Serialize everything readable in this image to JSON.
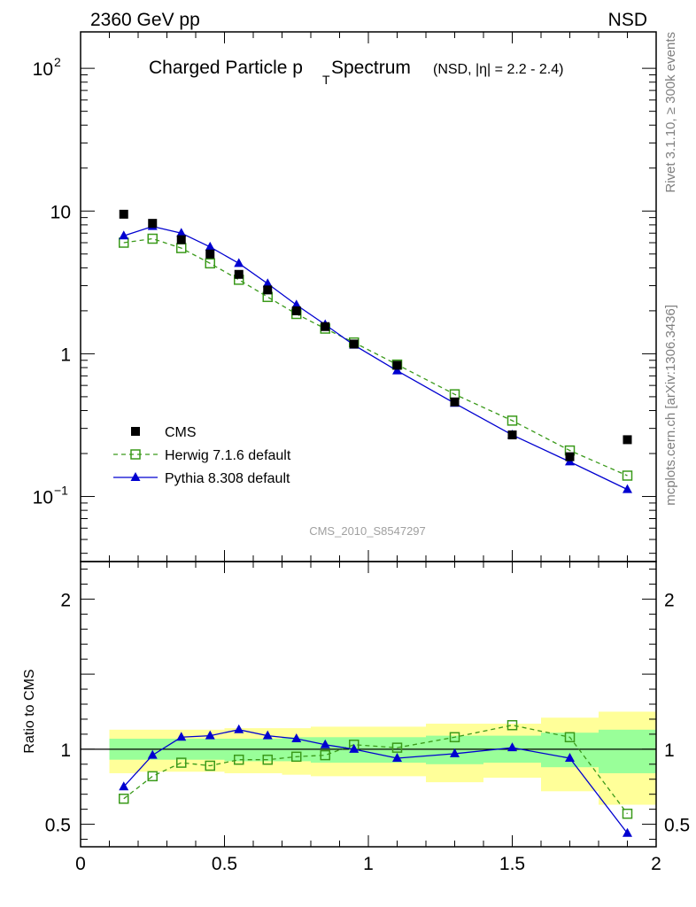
{
  "header": {
    "left": "2360 GeV pp",
    "right": "NSD"
  },
  "side_labels": {
    "rivet": "Rivet 3.1.10, ≥ 300k events",
    "mcplots": "mcplots.cern.ch [arXiv:1306.3436]"
  },
  "watermark": "CMS_2010_S8547297",
  "colors": {
    "cms": "#000000",
    "herwig": "#3a9a1a",
    "pythia": "#0000d0",
    "band_outer": "#ffff99",
    "band_inner": "#99ff99"
  },
  "chart_data": [
    {
      "type": "scatter",
      "panel": "main",
      "title": "Charged Particle p",
      "title_sub": "T",
      "title_rest": " Spectrum",
      "title_note": "(NSD, |η| = 2.2 - 2.4)",
      "yscale": "log",
      "ylim": [
        0.035,
        180
      ],
      "xlim": [
        0,
        2
      ],
      "yticks": [
        {
          "v": 100,
          "label": "10",
          "exp": "2"
        },
        {
          "v": 10,
          "label": "10"
        },
        {
          "v": 1,
          "label": "1"
        },
        {
          "v": 0.1,
          "label": "10",
          "exp": "−1"
        }
      ],
      "legend": {
        "position": "bottom-left",
        "entries": [
          "CMS",
          "Herwig 7.1.6 default",
          "Pythia 8.308 default"
        ]
      },
      "series": [
        {
          "name": "CMS",
          "marker": "square-filled",
          "x": [
            0.15,
            0.25,
            0.35,
            0.45,
            0.55,
            0.65,
            0.75,
            0.85,
            0.95,
            1.1,
            1.3,
            1.5,
            1.7,
            1.9
          ],
          "y": [
            9.5,
            8.2,
            6.3,
            5.0,
            3.6,
            2.8,
            2.0,
            1.55,
            1.17,
            0.83,
            0.46,
            0.27,
            0.19,
            0.25
          ]
        },
        {
          "name": "Herwig 7.1.6 default",
          "marker": "square-open",
          "line": "dashed",
          "x": [
            0.15,
            0.25,
            0.35,
            0.45,
            0.55,
            0.65,
            0.75,
            0.85,
            0.95,
            1.1,
            1.3,
            1.5,
            1.7,
            1.9
          ],
          "y": [
            6.0,
            6.4,
            5.5,
            4.3,
            3.3,
            2.5,
            1.9,
            1.5,
            1.2,
            0.84,
            0.52,
            0.34,
            0.21,
            0.14
          ]
        },
        {
          "name": "Pythia 8.308 default",
          "marker": "triangle-filled",
          "line": "solid",
          "x": [
            0.15,
            0.25,
            0.35,
            0.45,
            0.55,
            0.65,
            0.75,
            0.85,
            0.95,
            1.1,
            1.3,
            1.5,
            1.7,
            1.9
          ],
          "y": [
            6.7,
            7.8,
            7.0,
            5.6,
            4.3,
            3.1,
            2.2,
            1.6,
            1.15,
            0.76,
            0.45,
            0.27,
            0.175,
            0.112
          ]
        }
      ]
    },
    {
      "type": "line",
      "panel": "ratio",
      "ylabel": "Ratio to CMS",
      "xlim": [
        0,
        2
      ],
      "ylim": [
        0.35,
        2.25
      ],
      "yticks": [
        {
          "v": 2,
          "label": "2"
        },
        {
          "v": 1,
          "label": "1"
        },
        {
          "v": 0.5,
          "label": "0.5"
        }
      ],
      "xticks": [
        {
          "v": 0,
          "label": "0"
        },
        {
          "v": 0.5,
          "label": "0.5"
        },
        {
          "v": 1,
          "label": "1"
        },
        {
          "v": 1.5,
          "label": "1.5"
        },
        {
          "v": 2,
          "label": "2"
        }
      ],
      "reference_line": 1,
      "bands": [
        {
          "x0": 0.1,
          "x1": 0.2,
          "outer": [
            0.84,
            1.13
          ],
          "inner": [
            0.93,
            1.07
          ]
        },
        {
          "x0": 0.2,
          "x1": 0.3,
          "outer": [
            0.85,
            1.13
          ],
          "inner": [
            0.93,
            1.07
          ]
        },
        {
          "x0": 0.3,
          "x1": 0.4,
          "outer": [
            0.85,
            1.13
          ],
          "inner": [
            0.93,
            1.07
          ]
        },
        {
          "x0": 0.4,
          "x1": 0.5,
          "outer": [
            0.85,
            1.13
          ],
          "inner": [
            0.93,
            1.07
          ]
        },
        {
          "x0": 0.5,
          "x1": 0.6,
          "outer": [
            0.84,
            1.14
          ],
          "inner": [
            0.92,
            1.07
          ]
        },
        {
          "x0": 0.6,
          "x1": 0.7,
          "outer": [
            0.84,
            1.14
          ],
          "inner": [
            0.92,
            1.07
          ]
        },
        {
          "x0": 0.7,
          "x1": 0.8,
          "outer": [
            0.83,
            1.14
          ],
          "inner": [
            0.92,
            1.08
          ]
        },
        {
          "x0": 0.8,
          "x1": 0.9,
          "outer": [
            0.82,
            1.15
          ],
          "inner": [
            0.91,
            1.08
          ]
        },
        {
          "x0": 0.9,
          "x1": 1.0,
          "outer": [
            0.82,
            1.15
          ],
          "inner": [
            0.91,
            1.08
          ]
        },
        {
          "x0": 1.0,
          "x1": 1.2,
          "outer": [
            0.82,
            1.15
          ],
          "inner": [
            0.91,
            1.08
          ]
        },
        {
          "x0": 1.2,
          "x1": 1.4,
          "outer": [
            0.78,
            1.17
          ],
          "inner": [
            0.9,
            1.09
          ]
        },
        {
          "x0": 1.4,
          "x1": 1.6,
          "outer": [
            0.81,
            1.17
          ],
          "inner": [
            0.91,
            1.09
          ]
        },
        {
          "x0": 1.6,
          "x1": 1.8,
          "outer": [
            0.72,
            1.21
          ],
          "inner": [
            0.88,
            1.11
          ]
        },
        {
          "x0": 1.8,
          "x1": 2.0,
          "outer": [
            0.63,
            1.25
          ],
          "inner": [
            0.84,
            1.13
          ]
        }
      ],
      "series": [
        {
          "name": "Herwig 7.1.6 default",
          "marker": "square-open",
          "line": "dashed",
          "x": [
            0.15,
            0.25,
            0.35,
            0.45,
            0.55,
            0.65,
            0.75,
            0.85,
            0.95,
            1.1,
            1.3,
            1.5,
            1.7,
            1.9
          ],
          "y": [
            0.67,
            0.82,
            0.91,
            0.89,
            0.93,
            0.93,
            0.95,
            0.96,
            1.03,
            1.01,
            1.08,
            1.16,
            1.08,
            0.57
          ]
        },
        {
          "name": "Pythia 8.308 default",
          "marker": "triangle-filled",
          "line": "solid",
          "x": [
            0.15,
            0.25,
            0.35,
            0.45,
            0.55,
            0.65,
            0.75,
            0.85,
            0.95,
            1.1,
            1.3,
            1.5,
            1.7,
            1.9
          ],
          "y": [
            0.75,
            0.96,
            1.08,
            1.09,
            1.13,
            1.09,
            1.07,
            1.03,
            1.0,
            0.94,
            0.97,
            1.01,
            0.94,
            0.44
          ]
        }
      ]
    }
  ]
}
